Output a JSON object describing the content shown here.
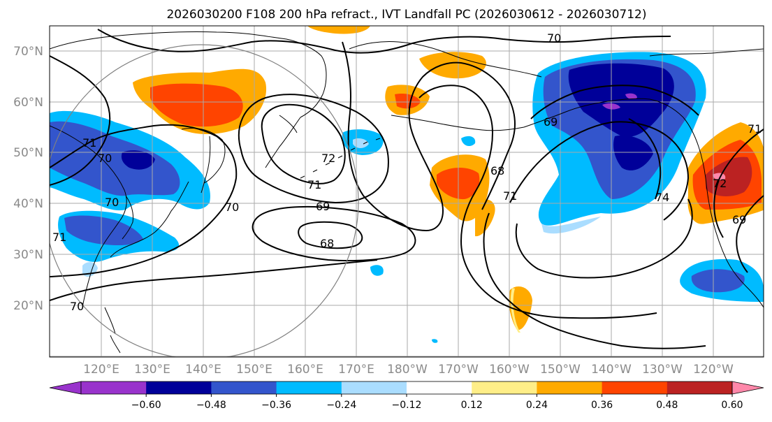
{
  "title": "2026030200 F108 200 hPa refract., IVT Landfall PC (2026030612 - 2026030712)",
  "lat_labels": [
    "70°N",
    "60°N",
    "50°N",
    "40°N",
    "30°N",
    "20°N"
  ],
  "lon_labels": [
    "120°E",
    "130°E",
    "140°E",
    "150°E",
    "160°E",
    "170°E",
    "180°W",
    "170°W",
    "160°W",
    "150°W",
    "140°W",
    "130°W",
    "120°W"
  ],
  "colorbar": {
    "ticks": [
      "−0.60",
      "−0.48",
      "−0.36",
      "−0.24",
      "−0.12",
      "0.12",
      "0.24",
      "0.36",
      "0.48",
      "0.60"
    ],
    "colors": [
      "#9933cc",
      "#000099",
      "#3355cc",
      "#00bbff",
      "#aaddff",
      "#ffffff",
      "#ffee88",
      "#ffaa00",
      "#ff4400",
      "#bb2222",
      "#ff88aa"
    ]
  },
  "contour_labels": [
    "70",
    "71",
    "72",
    "69",
    "68",
    "69",
    "71",
    "68",
    "74",
    "70",
    "71",
    "72",
    "70",
    "71",
    "70",
    "69",
    "70",
    "71"
  ],
  "colors": {
    "fill_colors": [
      "#9933cc",
      "#000099",
      "#3355cc",
      "#00bbff",
      "#aaddff",
      "#ffee88",
      "#ffaa00",
      "#ff4400",
      "#bb2222",
      "#ff88aa"
    ],
    "contour": "#000000",
    "grid": "#aaaaaa",
    "coast": "#000000"
  }
}
